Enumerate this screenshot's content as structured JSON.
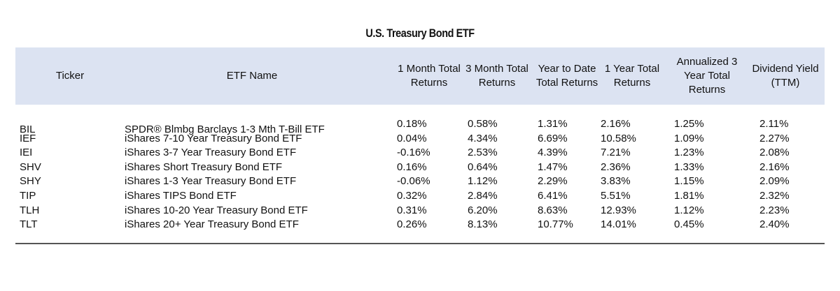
{
  "title": "U.S. Treasury Bond ETF",
  "headers": [
    "Ticker",
    "ETF Name",
    "1 Month Total Returns",
    "3 Month Total Returns",
    "Year to Date Total Returns",
    "1 Year Total Returns",
    "Annualized 3 Year Total Returns",
    "Dividend Yield (TTM)"
  ],
  "rows": [
    [
      "BIL",
      "SPDR® Blmbg Barclays 1-3 Mth T-Bill ETF",
      "0.18%",
      "0.58%",
      "1.31%",
      "2.16%",
      "1.25%",
      "2.11%"
    ],
    [
      "IEF",
      "iShares 7-10 Year Treasury Bond ETF",
      "0.04%",
      "4.34%",
      "6.69%",
      "10.58%",
      "1.09%",
      "2.27%"
    ],
    [
      "IEI",
      "iShares 3-7 Year Treasury Bond ETF",
      "-0.16%",
      "2.53%",
      "4.39%",
      "7.21%",
      "1.23%",
      "2.08%"
    ],
    [
      "SHV",
      "iShares Short Treasury Bond ETF",
      "0.16%",
      "0.64%",
      "1.47%",
      "2.36%",
      "1.33%",
      "2.16%"
    ],
    [
      "SHY",
      "iShares 1-3 Year Treasury Bond ETF",
      "-0.06%",
      "1.12%",
      "2.29%",
      "3.83%",
      "1.15%",
      "2.09%"
    ],
    [
      "TIP",
      "iShares TIPS Bond ETF",
      "0.32%",
      "2.84%",
      "6.41%",
      "5.51%",
      "1.81%",
      "2.32%"
    ],
    [
      "TLH",
      "iShares 10-20 Year Treasury Bond ETF",
      "0.31%",
      "6.20%",
      "8.63%",
      "12.93%",
      "1.12%",
      "2.23%"
    ],
    [
      "TLT",
      "iShares 20+ Year Treasury Bond ETF",
      "0.26%",
      "8.13%",
      "10.77%",
      "14.01%",
      "0.45%",
      "2.40%"
    ]
  ],
  "colors": {
    "header_bg": "#dce3f2",
    "rule": "#555555"
  }
}
